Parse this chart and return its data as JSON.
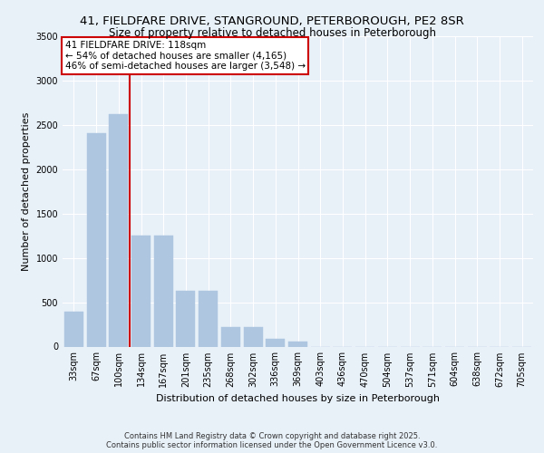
{
  "title_line1": "41, FIELDFARE DRIVE, STANGROUND, PETERBOROUGH, PE2 8SR",
  "title_line2": "Size of property relative to detached houses in Peterborough",
  "xlabel": "Distribution of detached houses by size in Peterborough",
  "ylabel": "Number of detached properties",
  "categories": [
    "33sqm",
    "67sqm",
    "100sqm",
    "134sqm",
    "167sqm",
    "201sqm",
    "235sqm",
    "268sqm",
    "302sqm",
    "336sqm",
    "369sqm",
    "403sqm",
    "436sqm",
    "470sqm",
    "504sqm",
    "537sqm",
    "571sqm",
    "604sqm",
    "638sqm",
    "672sqm",
    "705sqm"
  ],
  "values": [
    390,
    2410,
    2620,
    1250,
    1250,
    630,
    630,
    215,
    215,
    90,
    55,
    0,
    0,
    0,
    0,
    0,
    0,
    0,
    0,
    0,
    0
  ],
  "bar_color": "#aec6e0",
  "bar_edgecolor": "#aec6e0",
  "vline_color": "#cc0000",
  "annotation_text": "41 FIELDFARE DRIVE: 118sqm\n← 54% of detached houses are smaller (4,165)\n46% of semi-detached houses are larger (3,548) →",
  "annotation_box_color": "#ffffff",
  "annotation_border_color": "#cc0000",
  "ylim": [
    0,
    3500
  ],
  "yticks": [
    0,
    500,
    1000,
    1500,
    2000,
    2500,
    3000,
    3500
  ],
  "background_color": "#e8f0f8",
  "plot_bg_color": "#e8f0f8",
  "grid_color": "#ffffff",
  "footer_text": "Contains HM Land Registry data © Crown copyright and database right 2025.\nContains public sector information licensed under the Open Government Licence v3.0.",
  "title_fontsize": 9.5,
  "subtitle_fontsize": 8.5,
  "tick_fontsize": 7,
  "label_fontsize": 8,
  "annot_fontsize": 7.5,
  "footer_fontsize": 6.0
}
